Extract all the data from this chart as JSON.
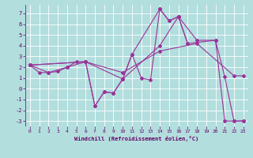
{
  "xlabel": "Windchill (Refroidissement éolien,°C)",
  "xlim": [
    -0.5,
    23.5
  ],
  "ylim": [
    -3.5,
    7.8
  ],
  "yticks": [
    -3,
    -2,
    -1,
    0,
    1,
    2,
    3,
    4,
    5,
    6,
    7
  ],
  "xticks": [
    0,
    1,
    2,
    3,
    4,
    5,
    6,
    7,
    8,
    9,
    10,
    11,
    12,
    13,
    14,
    15,
    16,
    17,
    18,
    19,
    20,
    21,
    22,
    23
  ],
  "background_color": "#b2dede",
  "grid_color": "#ffffff",
  "line_color": "#993399",
  "curve1_x": [
    0,
    1,
    2,
    3,
    4,
    5,
    6,
    7,
    8,
    9,
    10,
    11,
    12,
    13,
    14,
    15,
    16,
    17
  ],
  "curve1_y": [
    2.2,
    1.5,
    1.5,
    1.6,
    2.0,
    2.5,
    2.5,
    -1.6,
    -0.3,
    -0.4,
    0.9,
    3.2,
    1.0,
    0.8,
    7.4,
    6.3,
    6.7,
    4.2
  ],
  "curve2_x": [
    0,
    6,
    10,
    14,
    16,
    18,
    20,
    21,
    22,
    23
  ],
  "curve2_y": [
    2.2,
    2.5,
    0.9,
    4.0,
    6.7,
    4.5,
    4.5,
    1.1,
    -3.0,
    -3.0
  ],
  "curve3_x": [
    0,
    2,
    4,
    6,
    7,
    8,
    9,
    10,
    11,
    14,
    15,
    16,
    17,
    20,
    21,
    22,
    23
  ],
  "curve3_y": [
    2.2,
    1.5,
    2.0,
    2.5,
    -1.6,
    -0.3,
    -0.4,
    0.9,
    3.2,
    7.4,
    6.3,
    6.7,
    4.2,
    4.5,
    -3.0,
    -3.0,
    -3.0
  ],
  "curve4_x": [
    0,
    6,
    10,
    14,
    18,
    22,
    23
  ],
  "curve4_y": [
    2.2,
    2.5,
    1.5,
    3.5,
    4.2,
    1.2,
    1.2
  ]
}
